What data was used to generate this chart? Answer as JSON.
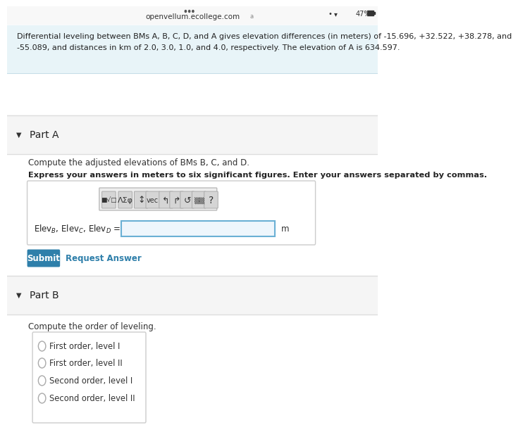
{
  "bg_color": "#ffffff",
  "top_bar_color": "#f5f5f5",
  "status_bar_text": "openvellum.ecollege.com",
  "status_bar_icons": "47%",
  "info_box_bg": "#e8f4f8",
  "info_box_border": "#c5dde8",
  "part_a_label": "Part A",
  "part_a_instruction": "Compute the adjusted elevations of BMs B, C, and D.",
  "part_a_bold": "Express your answers in meters to six significant figures. Enter your answers separated by commas.",
  "m_label": "m",
  "submit_btn_text": "Submit",
  "submit_btn_color": "#2e7faa",
  "request_link_text": "Request Answer",
  "part_b_label": "Part B",
  "part_b_instruction": "Compute the order of leveling.",
  "radio_options": [
    "First order, level I",
    "First order, level II",
    "Second order, level I",
    "Second order, level II"
  ],
  "section_divider_color": "#dddddd",
  "toolbar_bg": "#e8e8e8",
  "toolbar_border": "#cccccc",
  "input_box_border": "#6ab0d4",
  "input_box_bg": "#eef6fc",
  "radio_box_bg": "#ffffff",
  "radio_box_border": "#cccccc",
  "info_line1": "Differential leveling between BMs A, B, C, D, and A gives elevation differences (in meters) of -15.696, +32.522, +38.278, and",
  "info_line2": "-55.089, and distances in km of 2.0, 3.0, 1.0, and 4.0, respectively. The elevation of A is 634.597."
}
